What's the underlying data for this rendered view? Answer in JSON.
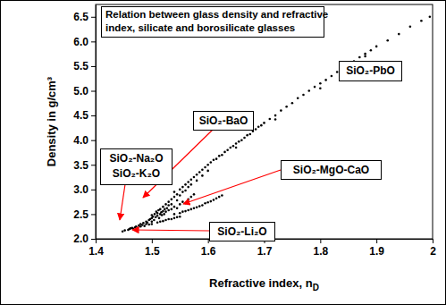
{
  "chart_data": {
    "type": "scatter",
    "title": [
      "Relation between glass density and refractive",
      "index, silicate and borosilicate glasses"
    ],
    "xlabel": "Refractive index, nD",
    "ylabel": "Density in g/cm³",
    "annotations": [
      "SiO₂-PbO",
      "SiO₂-BaO",
      "SiO₂-Na₂O",
      "SiO₂-K₂O",
      "SiO₂-MgO-CaO",
      "SiO₂-Li₂O"
    ],
    "color": "#000000",
    "marker": "circle",
    "grid": false,
    "xlim": [
      1.4,
      2
    ],
    "ylim": [
      2,
      6.75
    ],
    "xticks": [
      1.4,
      1.5,
      1.6,
      1.7,
      1.8,
      1.9,
      2
    ],
    "yticks": [
      {
        "value": 2,
        "label": "2.0"
      },
      2.5,
      {
        "value": 3,
        "label": "3.0"
      },
      3.5,
      {
        "value": 4,
        "label": "4.0"
      },
      4.5,
      {
        "value": 5,
        "label": "5.0"
      },
      5.5,
      {
        "value": 6,
        "label": "6.0"
      },
      6.5
    ],
    "x": [
      1.448,
      1.452,
      1.458,
      1.46,
      1.462,
      1.465,
      1.467,
      1.47,
      1.472,
      1.475,
      1.477,
      1.48,
      1.48,
      1.483,
      1.485,
      1.487,
      1.49,
      1.49,
      1.492,
      1.495,
      1.495,
      1.497,
      1.5,
      1.5,
      1.5,
      1.502,
      1.504,
      1.505,
      1.507,
      1.508,
      1.51,
      1.51,
      1.512,
      1.513,
      1.515,
      1.515,
      1.517,
      1.518,
      1.52,
      1.52,
      1.522,
      1.523,
      1.525,
      1.525,
      1.527,
      1.53,
      1.53,
      1.5,
      1.51,
      1.515,
      1.52,
      1.525,
      1.53,
      1.535,
      1.54,
      1.545,
      1.55,
      1.53,
      1.535,
      1.535,
      1.54,
      1.54,
      1.545,
      1.545,
      1.55,
      1.55,
      1.555,
      1.555,
      1.56,
      1.56,
      1.565,
      1.565,
      1.57,
      1.57,
      1.575,
      1.58,
      1.58,
      1.585,
      1.59,
      1.59,
      1.595,
      1.6,
      1.6,
      1.535,
      1.54,
      1.545,
      1.55,
      1.555,
      1.56,
      1.565,
      1.57,
      1.575,
      1.54,
      1.55,
      1.555,
      1.56,
      1.565,
      1.57,
      1.575,
      1.58,
      1.585,
      1.59,
      1.595,
      1.6,
      1.605,
      1.61,
      1.615,
      1.62,
      1.625,
      1.605,
      1.61,
      1.615,
      1.62,
      1.625,
      1.63,
      1.635,
      1.64,
      1.645,
      1.65,
      1.655,
      1.66,
      1.665,
      1.67,
      1.675,
      1.68,
      1.685,
      1.69,
      1.695,
      1.7,
      1.71,
      1.72,
      1.73,
      1.74,
      1.75,
      1.76,
      1.77,
      1.78,
      1.79,
      1.8,
      1.81,
      1.82,
      1.83,
      1.84,
      1.85,
      1.86,
      1.87,
      1.88,
      1.89,
      1.9,
      1.92,
      1.94,
      1.96,
      1.98,
      1.995,
      1.65,
      1.72,
      1.8,
      1.88
    ],
    "values": [
      2.15,
      2.17,
      2.18,
      2.2,
      2.21,
      2.22,
      2.2,
      2.23,
      2.25,
      2.22,
      2.27,
      2.25,
      2.3,
      2.28,
      2.32,
      2.26,
      2.3,
      2.35,
      2.33,
      2.38,
      2.29,
      2.4,
      2.35,
      2.42,
      2.48,
      2.45,
      2.38,
      2.5,
      2.44,
      2.55,
      2.47,
      2.52,
      2.58,
      2.42,
      2.5,
      2.6,
      2.54,
      2.48,
      2.56,
      2.65,
      2.5,
      2.6,
      2.55,
      2.7,
      2.62,
      2.58,
      2.68,
      2.3,
      2.33,
      2.35,
      2.36,
      2.38,
      2.4,
      2.4,
      2.42,
      2.44,
      2.45,
      2.75,
      2.8,
      2.7,
      2.85,
      2.95,
      2.9,
      2.78,
      3,
      2.88,
      3.05,
      2.95,
      3.1,
      2.98,
      3.15,
      3.05,
      3.2,
      3.1,
      3.25,
      3.3,
      3.18,
      3.35,
      3.4,
      3.28,
      3.45,
      3.5,
      3.38,
      2.6,
      2.65,
      2.62,
      2.7,
      2.75,
      2.72,
      2.8,
      2.85,
      2.9,
      2.5,
      2.52,
      2.55,
      2.56,
      2.58,
      2.6,
      2.62,
      2.64,
      2.66,
      2.68,
      2.72,
      2.74,
      2.76,
      2.79,
      2.82,
      2.85,
      2.88,
      3.55,
      3.6,
      3.62,
      3.68,
      3.7,
      3.76,
      3.8,
      3.85,
      3.88,
      3.93,
      3.97,
      4,
      4.05,
      4.1,
      4.12,
      4.18,
      4.22,
      4.27,
      4.3,
      4.35,
      4.43,
      4.5,
      4.6,
      4.68,
      4.75,
      4.85,
      4.92,
      5,
      5.08,
      5.15,
      5.22,
      5.3,
      5.38,
      5.45,
      5.52,
      5.6,
      5.68,
      5.75,
      5.82,
      5.9,
      6.02,
      6.15,
      6.3,
      6.42,
      6.5,
      3.85,
      4.42,
      5.05,
      5.7
    ]
  }
}
